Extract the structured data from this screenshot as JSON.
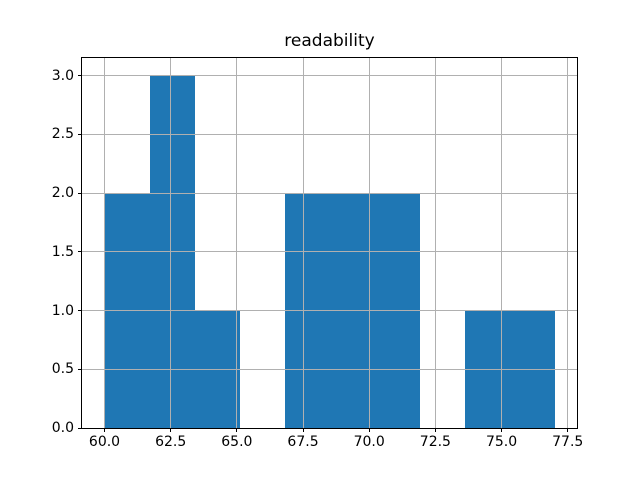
{
  "chart_data": {
    "type": "bar",
    "subtype": "histogram",
    "title": "readability",
    "xlabel": "",
    "ylabel": "",
    "bin_edges": [
      60.0,
      61.7,
      63.4,
      65.1,
      66.8,
      68.5,
      70.2,
      71.9,
      73.6,
      75.3,
      77.0
    ],
    "counts": [
      2,
      3,
      1,
      0,
      2,
      2,
      2,
      0,
      1,
      1
    ],
    "xlim": [
      59.15,
      77.85
    ],
    "ylim": [
      0,
      3.15
    ],
    "x_ticks": [
      60.0,
      62.5,
      65.0,
      67.5,
      70.0,
      72.5,
      75.0,
      77.5
    ],
    "x_tick_labels": [
      "60.0",
      "62.5",
      "65.0",
      "67.5",
      "70.0",
      "72.5",
      "75.0",
      "77.5"
    ],
    "y_ticks": [
      0.0,
      0.5,
      1.0,
      1.5,
      2.0,
      2.5,
      3.0
    ],
    "y_tick_labels": [
      "0.0",
      "0.5",
      "1.0",
      "1.5",
      "2.0",
      "2.5",
      "3.0"
    ],
    "grid": true,
    "grid_above_bars": true,
    "legend": "none",
    "bar_color": "#1f77b4",
    "grid_color": "#b0b0b0",
    "spine_color": "#000000",
    "background_color": "#ffffff"
  }
}
